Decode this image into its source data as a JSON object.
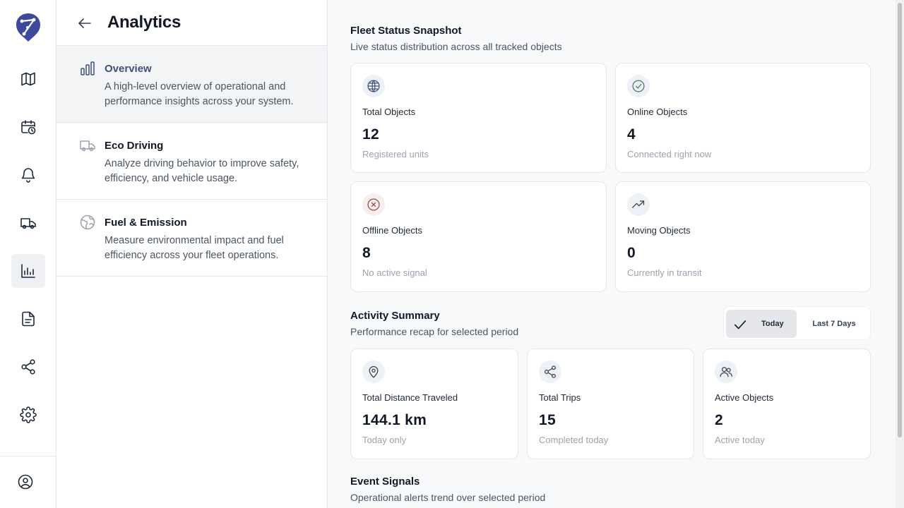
{
  "rail": {
    "icons": [
      "logo-icon",
      "map-icon",
      "calendar-clock-icon",
      "bell-icon",
      "truck-icon",
      "chart-icon",
      "document-icon",
      "share-icon",
      "gear-icon",
      "user-circle-icon"
    ],
    "active": "chart-icon"
  },
  "panel": {
    "title": "Analytics",
    "items": [
      {
        "label": "Overview",
        "desc": "A high-level overview of operational and performance insights across your system.",
        "icon": "bar-chart-icon",
        "active": true
      },
      {
        "label": "Eco Driving",
        "desc": "Analyze driving behavior to improve safety, efficiency, and vehicle usage.",
        "icon": "truck-icon",
        "active": false
      },
      {
        "label": "Fuel & Emission",
        "desc": "Measure environmental impact and fuel efficiency across your fleet operations.",
        "icon": "globe-leaf-icon",
        "active": false
      }
    ]
  },
  "fleet": {
    "title": "Fleet Status Snapshot",
    "subtitle": "Live status distribution across all tracked objects",
    "cards": [
      {
        "label": "Total Objects",
        "value": "12",
        "note": "Registered units",
        "icon": "globe-icon"
      },
      {
        "label": "Online Objects",
        "value": "4",
        "note": "Connected right now",
        "icon": "check-circle-icon"
      },
      {
        "label": "Offline Objects",
        "value": "8",
        "note": "No active signal",
        "icon": "x-circle-icon"
      },
      {
        "label": "Moving Objects",
        "value": "0",
        "note": "Currently in transit",
        "icon": "trending-up-icon"
      }
    ]
  },
  "activity": {
    "title": "Activity Summary",
    "subtitle": "Performance recap for selected period",
    "toggle": {
      "today": "Today",
      "last7": "Last 7 Days",
      "selected": "Today"
    },
    "cards": [
      {
        "label": "Total Distance Traveled",
        "value": "144.1 km",
        "note": "Today only",
        "icon": "location-pin-icon"
      },
      {
        "label": "Total Trips",
        "value": "15",
        "note": "Completed today",
        "icon": "share-icon"
      },
      {
        "label": "Active Objects",
        "value": "2",
        "note": "Active today",
        "icon": "users-icon"
      }
    ]
  },
  "events": {
    "title": "Event Signals",
    "subtitle": "Operational alerts trend over selected period"
  },
  "colors": {
    "brand": "#3d4a9c",
    "online": "#4a7a63",
    "offline": "#9b4b4b",
    "nav_active": "#3f4f7a"
  }
}
